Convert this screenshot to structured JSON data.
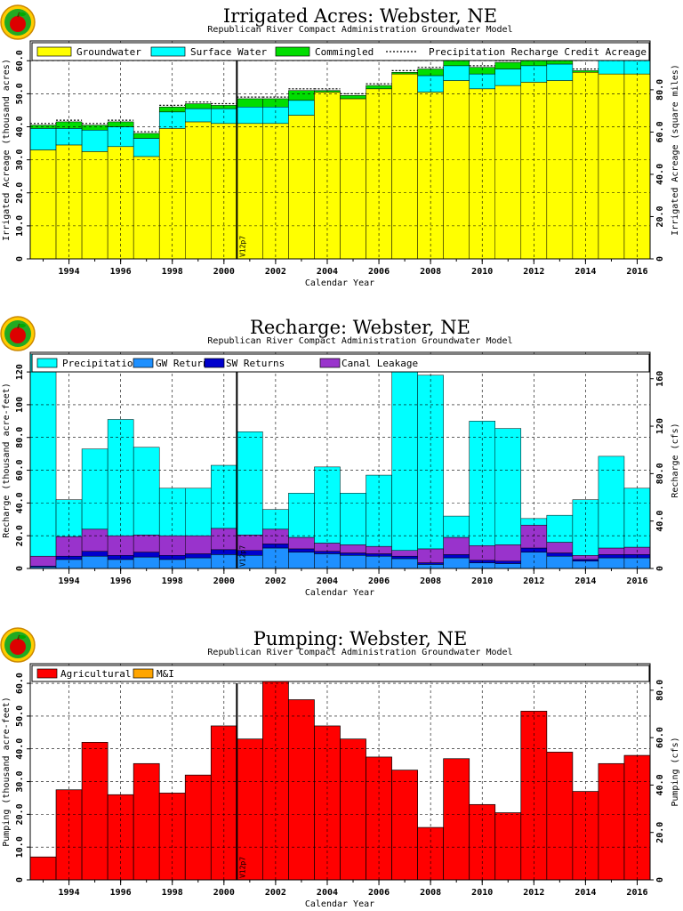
{
  "chart_data": [
    {
      "type": "area",
      "title": "Irrigated Acres: Webster, NE",
      "subtitle": "Republican River Compact Administration Groundwater Model",
      "xlabel": "Calendar Year",
      "ylabel": "Irrigated Acreage (thousand acres)",
      "y2label": "Irrigated Acreage (square miles)",
      "ylim": [
        0,
        66
      ],
      "y2lim": [
        0,
        103.1
      ],
      "yticks": [
        "0",
        "10.0",
        "20.0",
        "30.0",
        "40.0",
        "50.0",
        "60.0"
      ],
      "y2ticks": [
        "0",
        "20.0",
        "40.0",
        "60.0",
        "80.0"
      ],
      "x_ticks": [
        "1994",
        "1996",
        "1998",
        "2000",
        "2002",
        "2004",
        "2006",
        "2008",
        "2010",
        "2012",
        "2014",
        "2016"
      ],
      "years": [
        1993,
        1994,
        1995,
        1996,
        1997,
        1998,
        1999,
        2000,
        2001,
        2002,
        2003,
        2004,
        2005,
        2006,
        2007,
        2008,
        2009,
        2010,
        2011,
        2012,
        2013,
        2014,
        2015,
        2016
      ],
      "marker_label": "V12p7",
      "marker_year": 2000.5,
      "legend": [
        "Groundwater",
        "Surface Water",
        "Commingled",
        "Precipitation Recharge Credit Acreage"
      ],
      "series": [
        {
          "name": "Groundwater",
          "color": "#ffff00",
          "values": [
            33.0,
            34.5,
            32.5,
            34.0,
            31.0,
            39.5,
            41.5,
            41.0,
            41.0,
            41.0,
            43.5,
            50.5,
            48.5,
            51.5,
            56.0,
            50.5,
            54.0,
            51.5,
            52.5,
            53.5,
            54.0,
            56.5,
            56.0,
            56.0
          ]
        },
        {
          "name": "Surface Water",
          "color": "#00ffff",
          "values": [
            6.5,
            5.0,
            6.5,
            6.0,
            5.5,
            5.0,
            4.0,
            4.5,
            5.0,
            5.0,
            4.5,
            0,
            0,
            0,
            0,
            5.0,
            4.5,
            4.5,
            5.0,
            5.0,
            5.0,
            0,
            6.5,
            6.5
          ]
        },
        {
          "name": "Commingled",
          "color": "#00dd00",
          "values": [
            1.0,
            2.0,
            1.5,
            1.5,
            1.5,
            1.5,
            1.5,
            1.0,
            2.5,
            2.5,
            3.0,
            0.5,
            1.0,
            1.0,
            0.5,
            2.0,
            2.0,
            2.0,
            2.0,
            2.0,
            2.0,
            0.5,
            0.5,
            0.5
          ]
        },
        {
          "name": "Precipitation Recharge Credit Acreage",
          "color": "#000000",
          "values": [
            0.5,
            0.5,
            0.5,
            0.5,
            0.5,
            0.5,
            0.5,
            0.5,
            0.5,
            0.5,
            0.5,
            0.5,
            0.5,
            0.5,
            0.5,
            0.5,
            0.5,
            0.5,
            0.5,
            0.5,
            0.5,
            0.5,
            0.5,
            0.5
          ]
        }
      ]
    },
    {
      "type": "area",
      "title": "Recharge: Webster, NE",
      "subtitle": "Republican River Compact Administration Groundwater Model",
      "xlabel": "Calendar Year",
      "ylabel": "Recharge (thousand acre-feet)",
      "y2label": "Recharge (cfs)",
      "ylim": [
        0,
        132
      ],
      "y2lim": [
        0,
        182.3
      ],
      "yticks": [
        "0",
        "20.0",
        "40.0",
        "60.0",
        "80.0",
        "100",
        "120"
      ],
      "y2ticks": [
        "0",
        "40.0",
        "80.0",
        "120",
        "160"
      ],
      "x_ticks": [
        "1994",
        "1996",
        "1998",
        "2000",
        "2002",
        "2004",
        "2006",
        "2008",
        "2010",
        "2012",
        "2014",
        "2016"
      ],
      "years": [
        1993,
        1994,
        1995,
        1996,
        1997,
        1998,
        1999,
        2000,
        2001,
        2002,
        2003,
        2004,
        2005,
        2006,
        2007,
        2008,
        2009,
        2010,
        2011,
        2012,
        2013,
        2014,
        2015,
        2016
      ],
      "marker_label": "V12p7",
      "marker_year": 2000.5,
      "legend": [
        "Precipitation",
        "GW Returns",
        "SW Returns",
        "Canal Leakage"
      ],
      "series": [
        {
          "name": "GW Returns",
          "color": "#1e90ff",
          "values": [
            1.0,
            5.5,
            7.5,
            5.5,
            7.0,
            5.5,
            6.5,
            8.5,
            8.0,
            12.5,
            10.0,
            9.0,
            8.0,
            7.5,
            6.0,
            2.5,
            6.5,
            3.5,
            3.0,
            10.0,
            7.5,
            4.5,
            6.5,
            6.5
          ]
        },
        {
          "name": "SW Returns",
          "color": "#0000cd",
          "values": [
            0.5,
            2.0,
            3.0,
            2.5,
            3.0,
            2.5,
            2.5,
            3.0,
            3.0,
            2.5,
            2.0,
            1.5,
            1.5,
            1.5,
            1.5,
            1.0,
            2.0,
            1.5,
            1.5,
            2.5,
            2.0,
            1.0,
            2.0,
            2.0
          ]
        },
        {
          "name": "Canal Leakage",
          "color": "#9933cc",
          "values": [
            6.0,
            12.0,
            13.5,
            12.0,
            10.5,
            12.0,
            11.0,
            13.0,
            9.5,
            9.0,
            7.0,
            5.0,
            5.0,
            4.5,
            3.5,
            8.5,
            10.5,
            9.0,
            10.0,
            14.0,
            6.5,
            2.5,
            4.0,
            4.5
          ]
        },
        {
          "name": "Precipitation",
          "color": "#00ffff",
          "values": [
            123.5,
            22.5,
            49.0,
            71.0,
            53.5,
            29.0,
            29.0,
            38.5,
            63.0,
            12.0,
            27.0,
            46.5,
            31.5,
            43.5,
            111.5,
            106.0,
            13.0,
            76.0,
            71.0,
            4.0,
            16.5,
            34.0,
            56.0,
            36.0
          ]
        }
      ]
    },
    {
      "type": "bar",
      "title": "Pumping: Webster, NE",
      "subtitle": "Republican River Compact Administration Groundwater Model",
      "xlabel": "Calendar Year",
      "ylabel": "Pumping (thousand acre-feet)",
      "y2label": "Pumping (cfs)",
      "ylim": [
        0,
        66
      ],
      "y2lim": [
        0,
        91.2
      ],
      "yticks": [
        "0",
        "10.0",
        "20.0",
        "30.0",
        "40.0",
        "50.0",
        "60.0"
      ],
      "y2ticks": [
        "0",
        "20.0",
        "40.0",
        "60.0",
        "80.0"
      ],
      "x_ticks": [
        "1994",
        "1996",
        "1998",
        "2000",
        "2002",
        "2004",
        "2006",
        "2008",
        "2010",
        "2012",
        "2014",
        "2016"
      ],
      "years": [
        1993,
        1994,
        1995,
        1996,
        1997,
        1998,
        1999,
        2000,
        2001,
        2002,
        2003,
        2004,
        2005,
        2006,
        2007,
        2008,
        2009,
        2010,
        2011,
        2012,
        2013,
        2014,
        2015,
        2016
      ],
      "marker_label": "V12p7",
      "marker_year": 2000.5,
      "legend": [
        "Agricultural",
        "M&I"
      ],
      "series": [
        {
          "name": "Agricultural",
          "color": "#ff0000",
          "values": [
            7.0,
            27.5,
            42.0,
            26.0,
            35.5,
            26.5,
            32.0,
            47.0,
            43.0,
            63.0,
            55.0,
            47.0,
            43.0,
            37.5,
            33.5,
            16.0,
            37.0,
            23.0,
            20.5,
            51.5,
            39.0,
            27.0,
            35.5,
            38.0
          ]
        },
        {
          "name": "M&I",
          "color": "#ffa500",
          "values": [
            0,
            0,
            0,
            0,
            0,
            0,
            0,
            0,
            0,
            0,
            0,
            0,
            0,
            0,
            0,
            0,
            0,
            0,
            0,
            0,
            0,
            0,
            0,
            0
          ]
        }
      ]
    }
  ]
}
